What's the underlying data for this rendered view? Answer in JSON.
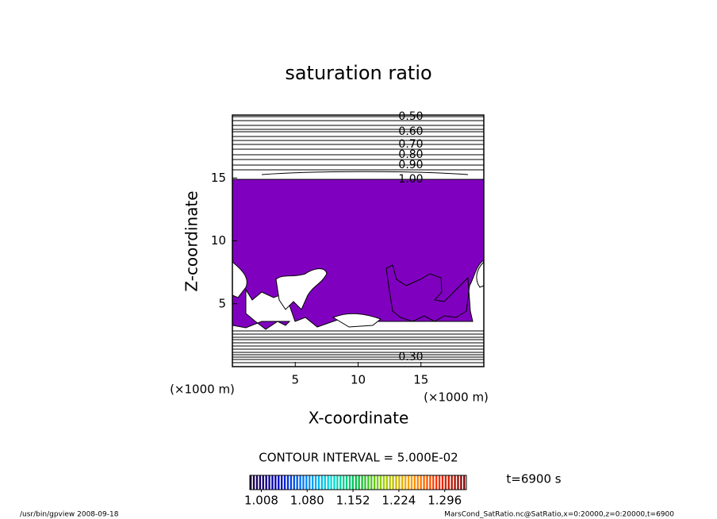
{
  "chart_data": {
    "type": "contour",
    "title": "saturation ratio",
    "x_label": "X-coordinate",
    "y_label": "Z-coordinate",
    "x_unit_label": "(×1000 m)",
    "y_unit_label": "(×1000 m)",
    "xlim": [
      0,
      20
    ],
    "xticks": [
      5,
      10,
      15
    ],
    "ylim": [
      0,
      20
    ],
    "yticks": [
      5,
      10,
      15
    ],
    "fill_color": "#8000c0",
    "contour_labels": [
      {
        "value": 0.5,
        "label": "0.50"
      },
      {
        "value": 0.6,
        "label": "0.60"
      },
      {
        "value": 0.7,
        "label": "0.70"
      },
      {
        "value": 0.8,
        "label": "0.80"
      },
      {
        "value": 0.9,
        "label": "0.90"
      },
      {
        "value": 1.0,
        "label": "1.00"
      },
      {
        "value": 0.3,
        "label": "0.30"
      }
    ],
    "contour_interval_text": "CONTOUR INTERVAL = 5.000E-02",
    "time_label": "t=6900 s",
    "colorbar": {
      "clim": [
        0.99,
        1.33
      ],
      "ticks": [
        1.008,
        {
          "value": 1.08,
          "label": "1.080"
        },
        1.152,
        1.224,
        1.296
      ],
      "colors": [
        "#200040",
        "#0000c0",
        "#0080ff",
        "#00e0e0",
        "#00c040",
        "#a0d000",
        "#ffa000",
        "#ff3000",
        "#800000"
      ]
    },
    "footer_left": "/usr/bin/gpview  2008-09-18",
    "footer_right": "MarsCond_SatRatio.nc@SatRatio,x=0:20000,z=0:20000,t=6900"
  }
}
